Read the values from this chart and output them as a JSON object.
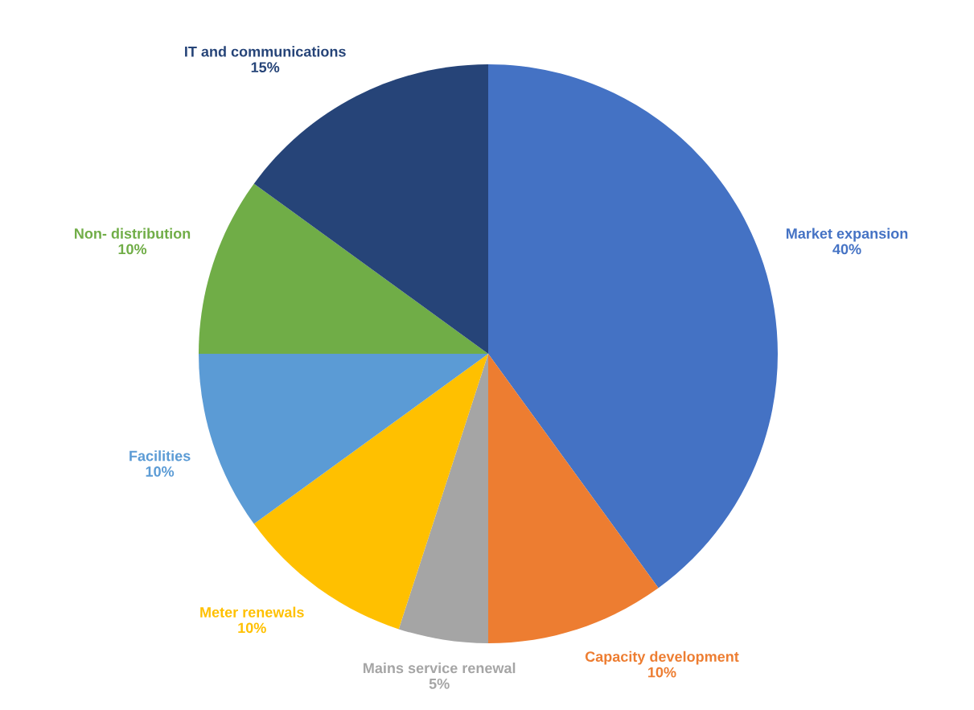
{
  "chart_data": {
    "type": "pie",
    "categories": [
      "Market expansion",
      "Capacity development",
      "Mains service renewal",
      "Meter renewals",
      "Facilities",
      "Non- distribution",
      "IT and communications"
    ],
    "values": [
      40,
      10,
      5,
      10,
      10,
      10,
      15
    ],
    "value_labels": [
      "40%",
      "10%",
      "5%",
      "10%",
      "10%",
      "10%",
      "15%"
    ],
    "colors": [
      "#4472c4",
      "#ed7d31",
      "#a5a5a5",
      "#ffc000",
      "#5b9bd5",
      "#70ad47",
      "#264478"
    ],
    "legend": false
  }
}
